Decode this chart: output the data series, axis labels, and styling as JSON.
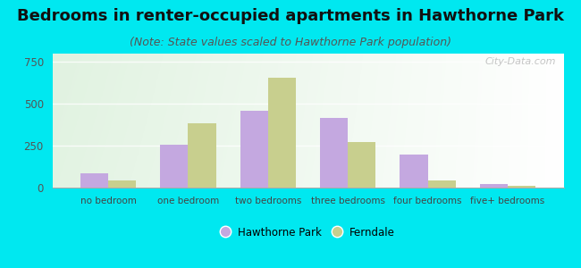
{
  "title": "Bedrooms in renter-occupied apartments in Hawthorne Park",
  "subtitle": "(Note: State values scaled to Hawthorne Park population)",
  "categories": [
    "no bedroom",
    "one bedroom",
    "two bedrooms",
    "three bedrooms",
    "four bedrooms",
    "five+ bedrooms"
  ],
  "hawthorne_values": [
    85,
    255,
    460,
    415,
    195,
    20
  ],
  "ferndale_values": [
    45,
    385,
    655,
    270,
    45,
    10
  ],
  "hawthorne_color": "#c4a8e0",
  "ferndale_color": "#c8cf8e",
  "background_outer": "#00e8f0",
  "ylim": [
    0,
    800
  ],
  "yticks": [
    0,
    250,
    500,
    750
  ],
  "bar_width": 0.35,
  "legend_hawthorne": "Hawthorne Park",
  "legend_ferndale": "Ferndale",
  "title_fontsize": 13,
  "subtitle_fontsize": 9,
  "watermark_text": "City-Data.com"
}
